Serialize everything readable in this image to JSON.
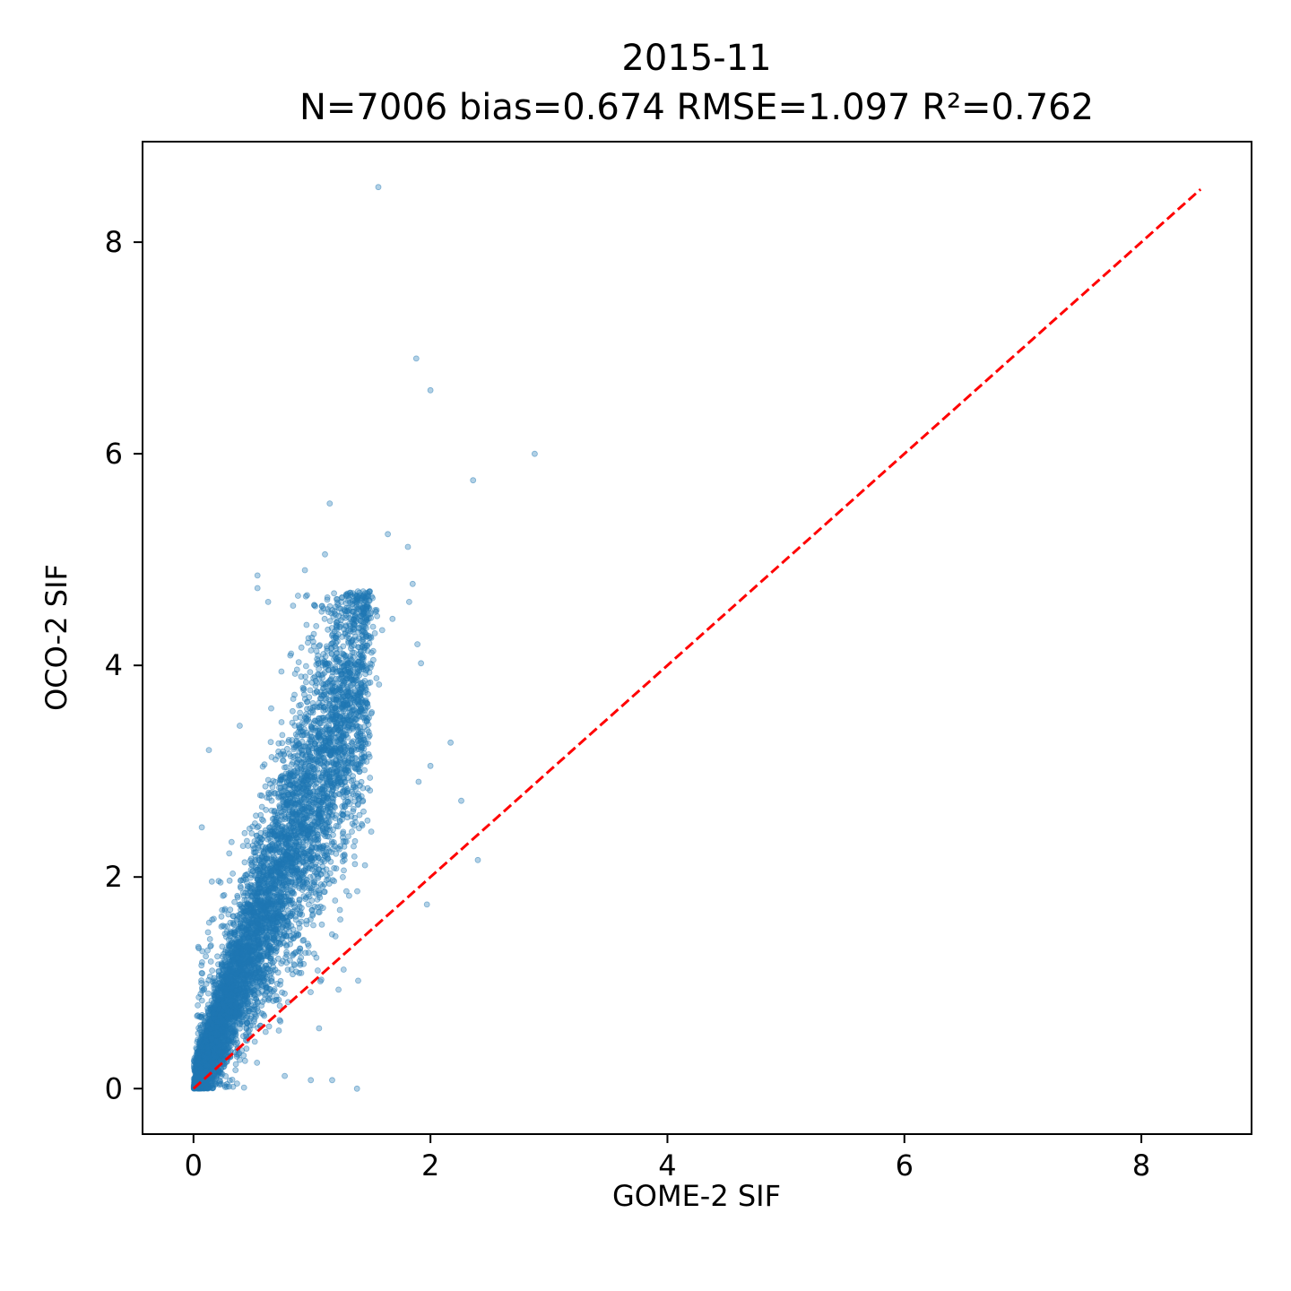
{
  "chart_data": {
    "type": "scatter",
    "title": "2015-11",
    "subtitle": "N=7006  bias=0.674  RMSE=1.097  R²=0.762",
    "xlabel": "GOME-2 SIF",
    "ylabel": "OCO-2 SIF",
    "xlim": [
      -0.43,
      8.93
    ],
    "ylim": [
      -0.43,
      8.95
    ],
    "xticks": [
      0,
      2,
      4,
      6,
      8
    ],
    "yticks": [
      0,
      2,
      4,
      6,
      8
    ],
    "xtick_labels": [
      "0",
      "2",
      "4",
      "6",
      "8"
    ],
    "ytick_labels": [
      "0",
      "2",
      "4",
      "6",
      "8"
    ],
    "grid": false,
    "point_color": "#1f77b4",
    "point_alpha": 0.35,
    "n_points": 7006,
    "outliers": [
      {
        "x": 1.56,
        "y": 8.52
      },
      {
        "x": 1.88,
        "y": 6.9
      },
      {
        "x": 2.0,
        "y": 6.6
      },
      {
        "x": 2.88,
        "y": 6.0
      },
      {
        "x": 2.36,
        "y": 5.75
      },
      {
        "x": 1.15,
        "y": 5.53
      },
      {
        "x": 1.64,
        "y": 5.24
      },
      {
        "x": 1.81,
        "y": 5.12
      },
      {
        "x": 1.11,
        "y": 5.05
      },
      {
        "x": 0.54,
        "y": 4.85
      },
      {
        "x": 0.54,
        "y": 4.73
      },
      {
        "x": 0.94,
        "y": 4.9
      },
      {
        "x": 1.85,
        "y": 4.77
      },
      {
        "x": 1.82,
        "y": 4.6
      },
      {
        "x": 1.89,
        "y": 4.2
      },
      {
        "x": 1.92,
        "y": 4.02
      },
      {
        "x": 2.17,
        "y": 3.27
      },
      {
        "x": 2.0,
        "y": 3.05
      },
      {
        "x": 2.26,
        "y": 2.72
      },
      {
        "x": 1.9,
        "y": 2.9
      },
      {
        "x": 2.4,
        "y": 2.16
      },
      {
        "x": 1.97,
        "y": 1.74
      },
      {
        "x": 1.38,
        "y": 0.0
      },
      {
        "x": 1.17,
        "y": 0.08
      },
      {
        "x": 0.99,
        "y": 0.08
      },
      {
        "x": 0.13,
        "y": 3.2
      },
      {
        "x": 0.39,
        "y": 3.43
      },
      {
        "x": 0.63,
        "y": 4.6
      },
      {
        "x": 0.07,
        "y": 2.47
      },
      {
        "x": 1.39,
        "y": 1.02
      },
      {
        "x": 1.06,
        "y": 0.57
      },
      {
        "x": 0.77,
        "y": 0.12
      }
    ],
    "cluster": {
      "description": "dense cloud; OCO-2 values rise roughly linearly with GOME-2",
      "x_range": [
        0,
        1.8
      ],
      "y_range": [
        0,
        4.7
      ],
      "slope": 2.75,
      "spread_y": 0.55
    },
    "reference_line": {
      "style": "dashed",
      "color": "#ff0000",
      "x": [
        0,
        8.5
      ],
      "y": [
        0,
        8.5
      ]
    }
  }
}
